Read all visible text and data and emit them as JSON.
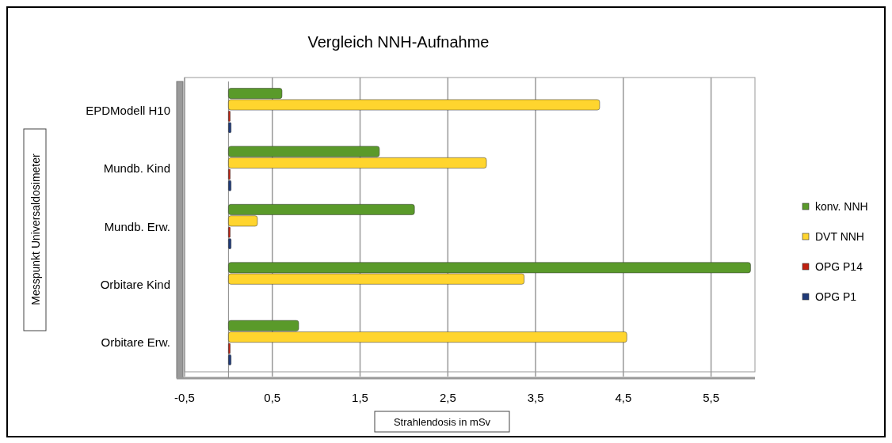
{
  "chart_data": {
    "type": "bar",
    "orientation": "horizontal",
    "title": "Vergleich NNH-Aufnahme",
    "xlabel": "Strahlendosis in mSv",
    "ylabel": "Messpunkt Universaldosimeter",
    "categories": [
      "EPDModell H10",
      "Mundb. Kind",
      "Mundb. Erw.",
      "Orbitare Kind",
      "Orbitare Erw."
    ],
    "series": [
      {
        "name": "konv. NNH",
        "color": "#5a9a2a",
        "values": [
          0.61,
          1.72,
          2.12,
          5.95,
          0.8
        ]
      },
      {
        "name": "DVT NNH",
        "color": "#ffd52e",
        "values": [
          4.23,
          2.94,
          0.33,
          3.37,
          4.54
        ]
      },
      {
        "name": "OPG P14",
        "color": "#c0200f",
        "values": [
          0.02,
          0.02,
          0.02,
          null,
          0.02
        ]
      },
      {
        "name": "OPG P1",
        "color": "#1f3a78",
        "values": [
          0.03,
          0.03,
          0.03,
          null,
          0.03
        ]
      }
    ],
    "xlim": [
      -0.5,
      6
    ],
    "xticks": [
      {
        "value": -0.5,
        "label": "-0,5"
      },
      {
        "value": 0.5,
        "label": "0,5"
      },
      {
        "value": 1.5,
        "label": "1,5"
      },
      {
        "value": 2.5,
        "label": "2,5"
      },
      {
        "value": 3.5,
        "label": "3,5"
      },
      {
        "value": 4.5,
        "label": "4,5"
      },
      {
        "value": 5.5,
        "label": "5,5"
      }
    ],
    "grid": "x",
    "legend": "right"
  }
}
